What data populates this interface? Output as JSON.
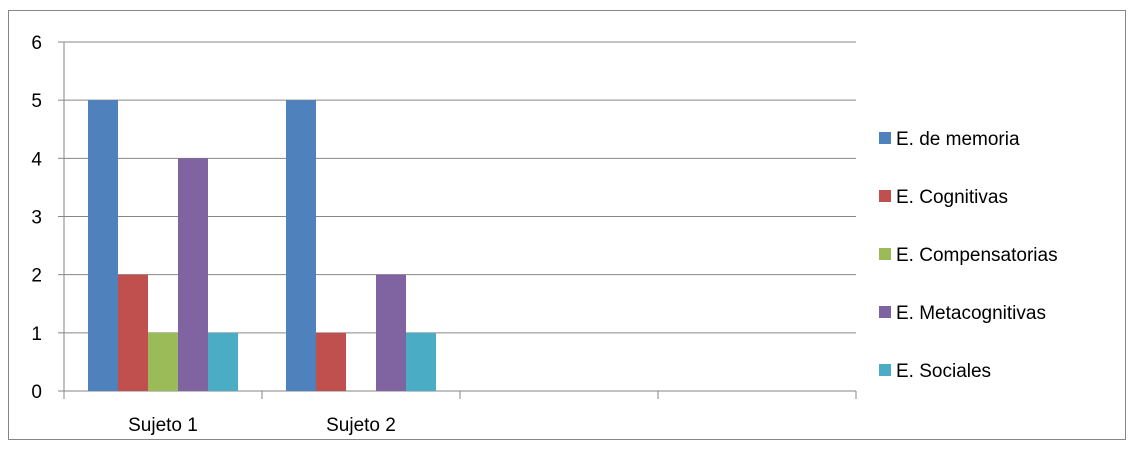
{
  "chart_data": {
    "type": "bar",
    "categories": [
      "Sujeto 1",
      "Sujeto 2",
      "",
      ""
    ],
    "series": [
      {
        "name": "E. de memoria",
        "values": [
          5,
          5,
          null,
          null
        ],
        "color": "#4F81BD"
      },
      {
        "name": "E. Cognitivas",
        "values": [
          2,
          1,
          null,
          null
        ],
        "color": "#C0504D"
      },
      {
        "name": "E. Compensatorias",
        "values": [
          1,
          0,
          null,
          null
        ],
        "color": "#9BBB59"
      },
      {
        "name": "E. Metacognitivas",
        "values": [
          4,
          2,
          null,
          null
        ],
        "color": "#8064A2"
      },
      {
        "name": "E. Sociales",
        "values": [
          1,
          1,
          null,
          null
        ],
        "color": "#4BACC6"
      }
    ],
    "yticks": [
      0,
      1,
      2,
      3,
      4,
      5,
      6
    ],
    "ylim": [
      0,
      6
    ],
    "grid": true,
    "legend_position": "right",
    "title": "",
    "xlabel": "",
    "ylabel": ""
  }
}
